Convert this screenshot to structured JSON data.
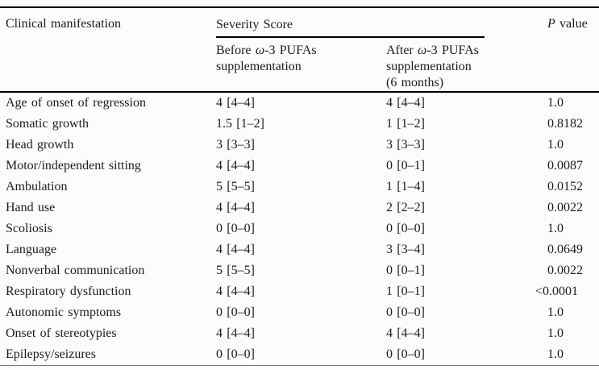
{
  "page": {
    "background": "#fcfcfc",
    "text_color": "#1c1c1c",
    "rule_color": "#000000"
  },
  "table": {
    "header": {
      "clinical_manifestation": "Clinical manifestation",
      "severity_score": "Severity Score",
      "p_value": {
        "p": "P",
        "value": " value"
      },
      "before": {
        "pre": "Before ",
        "omega": "ω",
        "post": "-3 PUFAs",
        "line2": "supplementation"
      },
      "after": {
        "pre": "After ",
        "omega": "ω",
        "post": "-3 PUFAs",
        "line2": "supplementation",
        "line3": "(6 months)"
      }
    },
    "rows": [
      {
        "manifestation": "Age of onset of regression",
        "before": "4 [4–4]",
        "after": "4 [4–4]",
        "p": "1.0"
      },
      {
        "manifestation": "Somatic growth",
        "before": "1.5 [1–2]",
        "after": "1 [1–2]",
        "p": "0.8182"
      },
      {
        "manifestation": "Head growth",
        "before": "3 [3–3]",
        "after": "3 [3–3]",
        "p": "1.0"
      },
      {
        "manifestation": "Motor/independent sitting",
        "before": "4 [4–4]",
        "after": "0 [0–1]",
        "p": "0.0087"
      },
      {
        "manifestation": "Ambulation",
        "before": "5 [5–5]",
        "after": "1 [1–4]",
        "p": "0.0152"
      },
      {
        "manifestation": "Hand use",
        "before": "4 [4–4]",
        "after": "2 [2–2]",
        "p": "0.0022"
      },
      {
        "manifestation": "Scoliosis",
        "before": "0 [0–0]",
        "after": "0 [0–0]",
        "p": "1.0"
      },
      {
        "manifestation": "Language",
        "before": "4 [4–4]",
        "after": "3 [3–4]",
        "p": "0.0649"
      },
      {
        "manifestation": "Nonverbal communication",
        "before": "5 [5–5]",
        "after": "0 [0–1]",
        "p": "0.0022"
      },
      {
        "manifestation": "Respiratory dysfunction",
        "before": "4 [4–4]",
        "after": "1 [0–1]",
        "p": "<0.0001"
      },
      {
        "manifestation": "Autonomic symptoms",
        "before": "0 [0–0]",
        "after": "0 [0–0]",
        "p": "1.0"
      },
      {
        "manifestation": "Onset of stereotypies",
        "before": "4 [4–4]",
        "after": "4 [4–4]",
        "p": "1.0"
      },
      {
        "manifestation": "Epilepsy/seizures",
        "before": "0 [0–0]",
        "after": "0 [0–0]",
        "p": "1.0"
      }
    ]
  }
}
